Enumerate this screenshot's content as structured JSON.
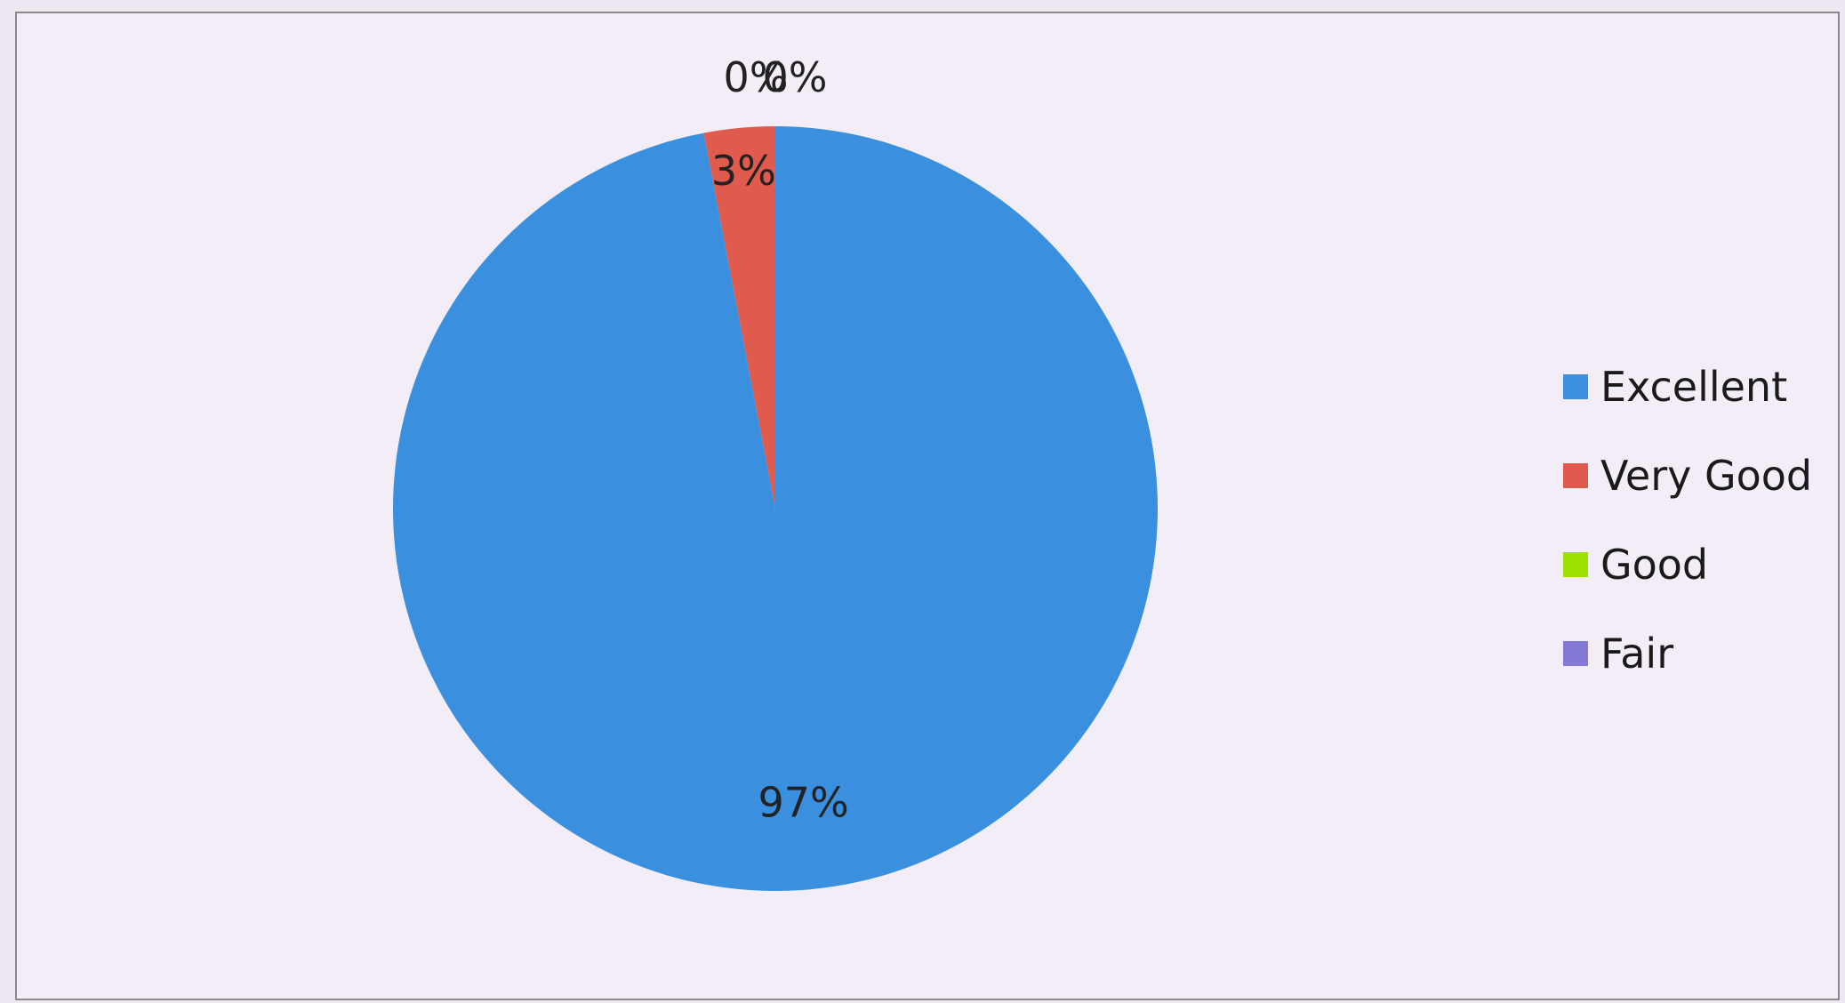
{
  "chart_data": {
    "type": "pie",
    "categories": [
      "Excellent",
      "Very Good",
      "Good",
      "Fair"
    ],
    "values": [
      97,
      3,
      0,
      0
    ],
    "data_labels": [
      "97%",
      "3%",
      "0%",
      "0%"
    ],
    "colors": [
      "#3a8fde",
      "#e05a4e",
      "#9de000",
      "#8478d8"
    ],
    "legend_position": "right",
    "title": ""
  }
}
